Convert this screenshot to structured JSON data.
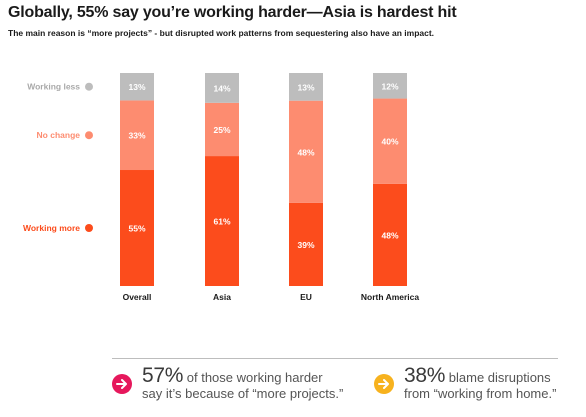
{
  "title": "Globally, 55% say you’re working harder—Asia is hardest hit",
  "subtitle": "The main reason is “more projects” - but disrupted work patterns from sequestering also have an impact.",
  "chart_data": {
    "type": "bar",
    "stacked": true,
    "percent_stacked": true,
    "categories": [
      "Overall",
      "Asia",
      "EU",
      "North America"
    ],
    "series": [
      {
        "name": "Working more",
        "values": [
          55,
          61,
          39,
          48
        ],
        "labels": [
          "55%",
          "61%",
          "39%",
          "48%"
        ],
        "color": "#fc4c1c"
      },
      {
        "name": "No change",
        "values": [
          33,
          25,
          48,
          40
        ],
        "labels": [
          "33%",
          "25%",
          "48%",
          "40%"
        ],
        "color": "#fd8c70"
      },
      {
        "name": "Working less",
        "values": [
          13,
          14,
          13,
          12
        ],
        "labels": [
          "13%",
          "14%",
          "13%",
          "12%"
        ],
        "color": "#bdbdbd"
      }
    ],
    "legend_position": "left",
    "grid": false
  },
  "callouts": [
    {
      "number": "57%",
      "line1": "of those working harder",
      "line2": "say it’s because of “more projects.”",
      "icon": "arrow-right-icon",
      "icon_color": "#e6185c"
    },
    {
      "number": "38%",
      "line1": "blame disruptions",
      "line2": "from “working from home.”",
      "icon": "arrow-right-icon",
      "icon_color": "#f7b21e"
    }
  ]
}
